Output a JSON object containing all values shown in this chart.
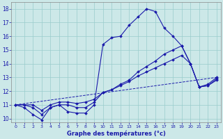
{
  "xlabel": "Graphe des températures (°c)",
  "bg_color": "#cce8e8",
  "grid_color": "#99cccc",
  "line_color": "#1a1aaa",
  "xlim_min": -0.5,
  "xlim_max": 23.5,
  "ylim_min": 9.7,
  "ylim_max": 18.5,
  "xticks": [
    0,
    1,
    2,
    3,
    4,
    5,
    6,
    7,
    8,
    9,
    10,
    11,
    12,
    13,
    14,
    15,
    16,
    17,
    18,
    19,
    20,
    21,
    22,
    23
  ],
  "yticks": [
    10,
    11,
    12,
    13,
    14,
    15,
    16,
    17,
    18
  ],
  "curve1_x": [
    0,
    1,
    2,
    3,
    4,
    5,
    6,
    7,
    8,
    9,
    10,
    11,
    12,
    13,
    14,
    15,
    16,
    17,
    18,
    19,
    20,
    21,
    22,
    23
  ],
  "curve1_y": [
    11.0,
    10.8,
    10.3,
    9.9,
    10.8,
    11.0,
    10.5,
    10.4,
    10.4,
    11.0,
    15.4,
    15.9,
    16.0,
    16.8,
    17.4,
    18.0,
    17.8,
    16.6,
    16.0,
    15.3,
    14.0,
    12.3,
    12.4,
    12.8
  ],
  "curve2_x": [
    0,
    1,
    2,
    3,
    4,
    5,
    6,
    7,
    8,
    9,
    10,
    11,
    12,
    13,
    14,
    15,
    16,
    17,
    18,
    19,
    20,
    21,
    22,
    23
  ],
  "curve2_y": [
    11.0,
    11.0,
    10.8,
    10.3,
    10.8,
    11.0,
    11.0,
    10.8,
    10.8,
    11.2,
    11.9,
    12.1,
    12.5,
    12.8,
    13.4,
    13.8,
    14.2,
    14.7,
    15.0,
    15.3,
    14.0,
    12.3,
    12.4,
    12.9
  ],
  "curve3_x": [
    0,
    1,
    2,
    3,
    4,
    5,
    6,
    7,
    8,
    9,
    10,
    11,
    12,
    13,
    14,
    15,
    16,
    17,
    18,
    19,
    20,
    21,
    22,
    23
  ],
  "curve3_y": [
    11.0,
    11.0,
    11.0,
    10.6,
    11.0,
    11.2,
    11.2,
    11.1,
    11.2,
    11.4,
    11.9,
    12.1,
    12.4,
    12.7,
    13.1,
    13.4,
    13.7,
    14.0,
    14.3,
    14.6,
    14.0,
    12.3,
    12.5,
    13.0
  ],
  "baseline_x": [
    0,
    23
  ],
  "baseline_y": [
    11.0,
    13.0
  ]
}
